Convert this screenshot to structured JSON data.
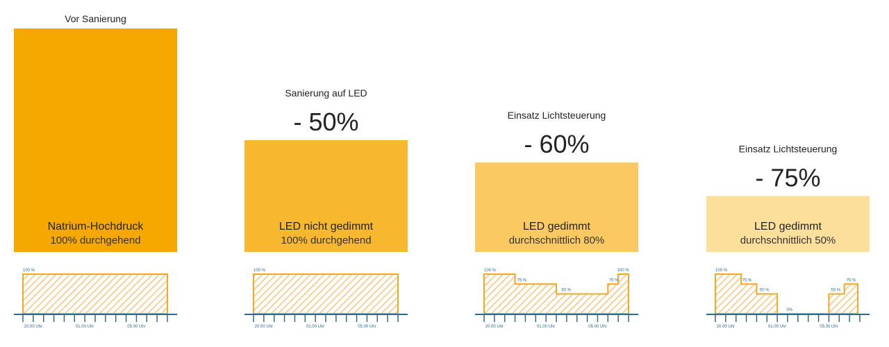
{
  "colors": {
    "bar_1": "#f5a900",
    "bar_2": "#f7b82f",
    "bar_3": "#fbc962",
    "bar_4": "#fcdf9a",
    "profile_stroke": "#f5a623",
    "hatch": "#f8c47a",
    "axis": "#2a6b94"
  },
  "chart_data": {
    "type": "bar",
    "title": "",
    "categories": [
      "Vor Sanierung",
      "Sanierung auf LED",
      "Einsatz Lichtsteuerung",
      "Einsatz Lichtsteuerung"
    ],
    "values": [
      100,
      50,
      40,
      25
    ],
    "ylim": [
      0,
      100
    ],
    "grid": false,
    "bars": [
      {
        "header": "Vor Sanierung",
        "reduction": "",
        "label_main": "Natrium-Hochdruck",
        "label_sub": "100% durchgehend",
        "value": 100
      },
      {
        "header": "Sanierung auf LED",
        "reduction": "- 50%",
        "label_main": "LED nicht gedimmt",
        "label_sub": "100% durchgehend",
        "value": 50
      },
      {
        "header": "Einsatz Lichtsteuerung",
        "reduction": "- 60%",
        "label_main": "LED gedimmt",
        "label_sub": "durchschnittlich 80%",
        "value": 40
      },
      {
        "header": "Einsatz Lichtsteuerung",
        "reduction": "- 75%",
        "label_main": "LED gedimmt",
        "label_sub": "durchschnittlich 50%",
        "value": 25
      }
    ],
    "profiles": [
      {
        "segments": [
          {
            "start": 0,
            "end": 14,
            "level": 100
          }
        ],
        "labels": [
          {
            "text": "100 %",
            "at": 0,
            "level": 100
          }
        ]
      },
      {
        "segments": [
          {
            "start": 0,
            "end": 14,
            "level": 100
          }
        ],
        "labels": [
          {
            "text": "100 %",
            "at": 0,
            "level": 100
          }
        ]
      },
      {
        "segments": [
          {
            "start": 0,
            "end": 3,
            "level": 100
          },
          {
            "start": 3,
            "end": 7,
            "level": 75
          },
          {
            "start": 7,
            "end": 12,
            "level": 50
          },
          {
            "start": 12,
            "end": 13,
            "level": 75
          },
          {
            "start": 13,
            "end": 14,
            "level": 100
          }
        ],
        "labels": [
          {
            "text": "100 %",
            "at": 0,
            "level": 100
          },
          {
            "text": "75 %",
            "at": 3.2,
            "level": 75
          },
          {
            "text": "50 %",
            "at": 7.5,
            "level": 50
          },
          {
            "text": "75 %",
            "at": 12.1,
            "level": 75
          },
          {
            "text": "100 %",
            "at": 12.9,
            "level": 100
          }
        ]
      },
      {
        "segments": [
          {
            "start": 0,
            "end": 2.5,
            "level": 100
          },
          {
            "start": 2.5,
            "end": 4,
            "level": 75
          },
          {
            "start": 4,
            "end": 6,
            "level": 50
          },
          {
            "start": 6,
            "end": 11,
            "level": 0
          },
          {
            "start": 11,
            "end": 12.5,
            "level": 50
          },
          {
            "start": 12.5,
            "end": 13.8,
            "level": 75
          }
        ],
        "labels": [
          {
            "text": "100 %",
            "at": 0,
            "level": 100
          },
          {
            "text": "75 %",
            "at": 2.6,
            "level": 75
          },
          {
            "text": "50 %",
            "at": 4.3,
            "level": 50
          },
          {
            "text": "0%",
            "at": 6.9,
            "level": 0
          },
          {
            "text": "50 %",
            "at": 11.2,
            "level": 50
          },
          {
            "text": "75 %",
            "at": 12.7,
            "level": 75
          }
        ]
      }
    ],
    "time_axis": {
      "ticks": 15,
      "tick_labels": [
        {
          "text": "20.00 Uhr",
          "at": 1
        },
        {
          "text": "01.00 Uhr",
          "at": 6
        },
        {
          "text": "05.00 Uhr",
          "at": 11
        }
      ]
    }
  }
}
